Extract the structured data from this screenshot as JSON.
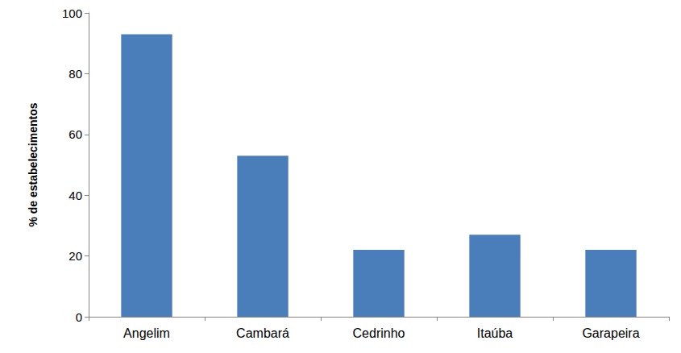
{
  "chart_data": {
    "type": "bar",
    "y_label": "% de estabelecimentos",
    "categories": [
      "Angelim",
      "Cambará",
      "Cedrinho",
      "Itaúba",
      "Garapeira"
    ],
    "values": [
      93,
      53,
      22,
      27,
      22
    ],
    "color": "#4a7ebb",
    "ylim": [
      0,
      100
    ],
    "yticks": [
      0,
      20,
      40,
      60,
      80,
      100
    ],
    "grid": false
  }
}
